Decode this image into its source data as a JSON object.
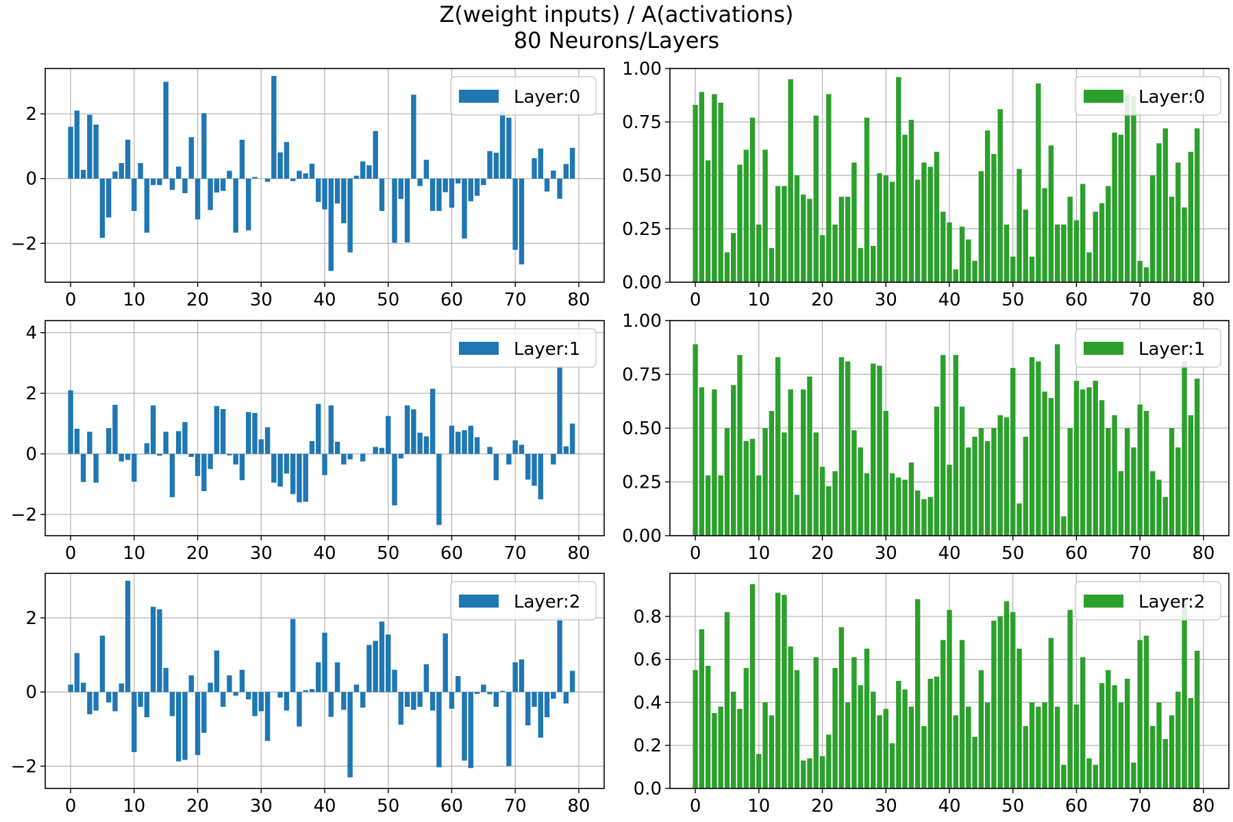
{
  "title": "Z(weight inputs) / A(activations)",
  "subtitle": "80 Neurons/Layers",
  "colors": {
    "z": "#1f77b4",
    "a": "#2ca02c",
    "grid": "#b0b0b0",
    "axis": "#000000"
  },
  "chart_data": [
    {
      "type": "bar",
      "legend": "Layer:0",
      "legend_position": "top-right",
      "xlim": [
        -4,
        84
      ],
      "ylim": [
        -3.2,
        3.4
      ],
      "xticks": [
        0,
        10,
        20,
        30,
        40,
        50,
        60,
        70,
        80
      ],
      "yticks": [
        -2,
        0,
        2
      ],
      "x": [
        0,
        1,
        2,
        3,
        4,
        5,
        6,
        7,
        8,
        9,
        10,
        11,
        12,
        13,
        14,
        15,
        16,
        17,
        18,
        19,
        20,
        21,
        22,
        23,
        24,
        25,
        26,
        27,
        28,
        29,
        30,
        31,
        32,
        33,
        34,
        35,
        36,
        37,
        38,
        39,
        40,
        41,
        42,
        43,
        44,
        45,
        46,
        47,
        48,
        49,
        50,
        51,
        52,
        53,
        54,
        55,
        56,
        57,
        58,
        59,
        60,
        61,
        62,
        63,
        64,
        65,
        66,
        67,
        68,
        69,
        70,
        71,
        72,
        73,
        74,
        75,
        76,
        77,
        78,
        79
      ],
      "values": [
        1.6,
        2.1,
        0.27,
        1.97,
        1.67,
        -1.83,
        -1.2,
        0.22,
        0.48,
        1.2,
        -1.0,
        0.48,
        -1.67,
        -0.2,
        -0.2,
        2.99,
        -0.35,
        0.37,
        -0.45,
        1.28,
        -1.26,
        2.02,
        -0.97,
        -0.43,
        -0.38,
        0.24,
        -1.67,
        1.2,
        -1.6,
        0.05,
        0.0,
        -0.1,
        3.17,
        0.81,
        1.13,
        -0.08,
        0.24,
        0.16,
        0.46,
        -0.72,
        -0.95,
        -2.85,
        -0.77,
        -1.38,
        -2.28,
        0.09,
        0.53,
        0.41,
        1.47,
        -1.0,
        0.0,
        -1.98,
        -0.63,
        -1.97,
        2.59,
        -0.23,
        0.58,
        -1.0,
        -1.0,
        -0.42,
        -0.9,
        -0.15,
        -1.85,
        -0.7,
        -0.53,
        -0.2,
        0.85,
        0.8,
        2.07,
        1.88,
        -2.2,
        -2.65,
        0.0,
        0.63,
        0.93,
        -0.4,
        0.25,
        -0.62,
        0.45,
        0.95
      ]
    },
    {
      "type": "bar",
      "legend": "Layer:0",
      "legend_position": "top-right",
      "xlim": [
        -4,
        84
      ],
      "ylim": [
        0,
        1.0
      ],
      "xticks": [
        0,
        10,
        20,
        30,
        40,
        50,
        60,
        70,
        80
      ],
      "yticks": [
        0.0,
        0.25,
        0.5,
        0.75,
        1.0
      ],
      "x": [
        0,
        1,
        2,
        3,
        4,
        5,
        6,
        7,
        8,
        9,
        10,
        11,
        12,
        13,
        14,
        15,
        16,
        17,
        18,
        19,
        20,
        21,
        22,
        23,
        24,
        25,
        26,
        27,
        28,
        29,
        30,
        31,
        32,
        33,
        34,
        35,
        36,
        37,
        38,
        39,
        40,
        41,
        42,
        43,
        44,
        45,
        46,
        47,
        48,
        49,
        50,
        51,
        52,
        53,
        54,
        55,
        56,
        57,
        58,
        59,
        60,
        61,
        62,
        63,
        64,
        65,
        66,
        67,
        68,
        69,
        70,
        71,
        72,
        73,
        74,
        75,
        76,
        77,
        78,
        79
      ],
      "values": [
        0.83,
        0.89,
        0.57,
        0.88,
        0.84,
        0.14,
        0.23,
        0.55,
        0.62,
        0.77,
        0.27,
        0.62,
        0.16,
        0.45,
        0.45,
        0.95,
        0.5,
        0.41,
        0.39,
        0.78,
        0.22,
        0.88,
        0.27,
        0.4,
        0.4,
        0.56,
        0.16,
        0.77,
        0.17,
        0.51,
        0.5,
        0.47,
        0.96,
        0.69,
        0.76,
        0.48,
        0.56,
        0.54,
        0.61,
        0.33,
        0.28,
        0.06,
        0.26,
        0.2,
        0.1,
        0.52,
        0.71,
        0.6,
        0.81,
        0.27,
        0.12,
        0.53,
        0.34,
        0.12,
        0.93,
        0.44,
        0.64,
        0.27,
        0.27,
        0.4,
        0.29,
        0.46,
        0.14,
        0.33,
        0.37,
        0.45,
        0.7,
        0.69,
        0.88,
        0.87,
        0.1,
        0.07,
        0.5,
        0.65,
        0.72,
        0.4,
        0.56,
        0.35,
        0.61,
        0.72
      ]
    },
    {
      "type": "bar",
      "legend": "Layer:1",
      "legend_position": "top-right",
      "xlim": [
        -4,
        84
      ],
      "ylim": [
        -2.7,
        4.4
      ],
      "xticks": [
        0,
        10,
        20,
        30,
        40,
        50,
        60,
        70,
        80
      ],
      "yticks": [
        -2,
        0,
        2,
        4
      ],
      "x": [
        0,
        1,
        2,
        3,
        4,
        5,
        6,
        7,
        8,
        9,
        10,
        11,
        12,
        13,
        14,
        15,
        16,
        17,
        18,
        19,
        20,
        21,
        22,
        23,
        24,
        25,
        26,
        27,
        28,
        29,
        30,
        31,
        32,
        33,
        34,
        35,
        36,
        37,
        38,
        39,
        40,
        41,
        42,
        43,
        44,
        45,
        46,
        47,
        48,
        49,
        50,
        51,
        52,
        53,
        54,
        55,
        56,
        57,
        58,
        59,
        60,
        61,
        62,
        63,
        64,
        65,
        66,
        67,
        68,
        69,
        70,
        71,
        72,
        73,
        74,
        75,
        76,
        77,
        78,
        79
      ],
      "values": [
        2.1,
        0.83,
        -0.93,
        0.73,
        -0.95,
        0.0,
        0.85,
        1.62,
        -0.25,
        -0.2,
        -0.92,
        0.0,
        0.35,
        1.6,
        -0.06,
        0.73,
        -1.43,
        0.75,
        1.05,
        -0.1,
        -0.73,
        -1.23,
        -0.5,
        1.58,
        1.48,
        -0.05,
        -0.35,
        -0.87,
        1.38,
        1.35,
        0.48,
        0.88,
        -0.95,
        -1.08,
        -0.65,
        -1.33,
        -1.6,
        -1.58,
        0.42,
        1.65,
        -0.7,
        1.6,
        0.4,
        -0.35,
        -0.18,
        0.0,
        -0.25,
        0.0,
        0.23,
        0.2,
        1.25,
        -1.7,
        -0.15,
        1.6,
        1.47,
        0.7,
        0.58,
        2.15,
        -2.35,
        0.0,
        0.93,
        0.73,
        0.78,
        0.93,
        0.55,
        0.0,
        0.23,
        -0.87,
        0.0,
        -0.35,
        0.45,
        0.3,
        -0.85,
        -1.05,
        -1.5,
        0.0,
        -0.35,
        2.85,
        0.25,
        1.0
      ]
    },
    {
      "type": "bar",
      "legend": "Layer:1",
      "legend_position": "top-right",
      "xlim": [
        -4,
        84
      ],
      "ylim": [
        0,
        1.0
      ],
      "xticks": [
        0,
        10,
        20,
        30,
        40,
        50,
        60,
        70,
        80
      ],
      "yticks": [
        0.0,
        0.25,
        0.5,
        0.75,
        1.0
      ],
      "x": [
        0,
        1,
        2,
        3,
        4,
        5,
        6,
        7,
        8,
        9,
        10,
        11,
        12,
        13,
        14,
        15,
        16,
        17,
        18,
        19,
        20,
        21,
        22,
        23,
        24,
        25,
        26,
        27,
        28,
        29,
        30,
        31,
        32,
        33,
        34,
        35,
        36,
        37,
        38,
        39,
        40,
        41,
        42,
        43,
        44,
        45,
        46,
        47,
        48,
        49,
        50,
        51,
        52,
        53,
        54,
        55,
        56,
        57,
        58,
        59,
        60,
        61,
        62,
        63,
        64,
        65,
        66,
        67,
        68,
        69,
        70,
        71,
        72,
        73,
        74,
        75,
        76,
        77,
        78,
        79
      ],
      "values": [
        0.89,
        0.69,
        0.28,
        0.68,
        0.28,
        0.5,
        0.7,
        0.84,
        0.44,
        0.45,
        0.28,
        0.5,
        0.58,
        0.83,
        0.48,
        0.68,
        0.19,
        0.68,
        0.74,
        0.48,
        0.32,
        0.23,
        0.3,
        0.83,
        0.81,
        0.49,
        0.41,
        0.29,
        0.8,
        0.79,
        0.58,
        0.29,
        0.27,
        0.26,
        0.34,
        0.21,
        0.17,
        0.18,
        0.6,
        0.84,
        0.33,
        0.84,
        0.6,
        0.41,
        0.46,
        0.5,
        0.44,
        0.5,
        0.56,
        0.55,
        0.78,
        0.15,
        0.46,
        0.83,
        0.81,
        0.67,
        0.64,
        0.89,
        0.09,
        0.5,
        0.72,
        0.68,
        0.69,
        0.72,
        0.63,
        0.5,
        0.56,
        0.3,
        0.5,
        0.41,
        0.61,
        0.58,
        0.3,
        0.26,
        0.18,
        0.5,
        0.41,
        0.81,
        0.56,
        0.73
      ]
    },
    {
      "type": "bar",
      "legend": "Layer:2",
      "legend_position": "top-right",
      "xlim": [
        -4,
        84
      ],
      "ylim": [
        -2.6,
        3.2
      ],
      "xticks": [
        0,
        10,
        20,
        30,
        40,
        50,
        60,
        70,
        80
      ],
      "yticks": [
        -2,
        0,
        2
      ],
      "x": [
        0,
        1,
        2,
        3,
        4,
        5,
        6,
        7,
        8,
        9,
        10,
        11,
        12,
        13,
        14,
        15,
        16,
        17,
        18,
        19,
        20,
        21,
        22,
        23,
        24,
        25,
        26,
        27,
        28,
        29,
        30,
        31,
        32,
        33,
        34,
        35,
        36,
        37,
        38,
        39,
        40,
        41,
        42,
        43,
        44,
        45,
        46,
        47,
        48,
        49,
        50,
        51,
        52,
        53,
        54,
        55,
        56,
        57,
        58,
        59,
        60,
        61,
        62,
        63,
        64,
        65,
        66,
        67,
        68,
        69,
        70,
        71,
        72,
        73,
        74,
        75,
        76,
        77,
        78,
        79
      ],
      "values": [
        0.2,
        1.05,
        0.25,
        -0.6,
        -0.5,
        1.52,
        -0.28,
        -0.52,
        0.23,
        3.0,
        -1.62,
        -0.4,
        -0.68,
        2.3,
        2.23,
        0.65,
        -0.65,
        -1.87,
        -1.83,
        0.45,
        -1.7,
        -1.1,
        0.25,
        1.12,
        -0.4,
        0.45,
        -0.1,
        0.6,
        -0.2,
        -0.65,
        -0.52,
        -1.32,
        0.0,
        -0.15,
        -0.5,
        1.97,
        -0.93,
        0.05,
        0.08,
        0.8,
        1.6,
        -0.67,
        0.8,
        -0.48,
        -2.3,
        0.2,
        -0.42,
        1.27,
        1.38,
        1.9,
        1.55,
        0.6,
        -0.88,
        -0.4,
        -0.48,
        -0.4,
        0.75,
        -0.5,
        -2.03,
        1.58,
        -0.45,
        0.43,
        -1.85,
        -2.05,
        -0.05,
        0.2,
        -0.06,
        -0.4,
        0.03,
        -2.0,
        0.8,
        0.88,
        -0.9,
        -0.4,
        -1.23,
        -0.68,
        -0.18,
        2.0,
        -0.31,
        0.57
      ]
    },
    {
      "type": "bar",
      "legend": "Layer:2",
      "legend_position": "top-right",
      "xlim": [
        -4,
        84
      ],
      "ylim": [
        0,
        1.0
      ],
      "xticks": [
        0,
        10,
        20,
        30,
        40,
        50,
        60,
        70,
        80
      ],
      "yticks": [
        0.0,
        0.2,
        0.4,
        0.6,
        0.8
      ],
      "x": [
        0,
        1,
        2,
        3,
        4,
        5,
        6,
        7,
        8,
        9,
        10,
        11,
        12,
        13,
        14,
        15,
        16,
        17,
        18,
        19,
        20,
        21,
        22,
        23,
        24,
        25,
        26,
        27,
        28,
        29,
        30,
        31,
        32,
        33,
        34,
        35,
        36,
        37,
        38,
        39,
        40,
        41,
        42,
        43,
        44,
        45,
        46,
        47,
        48,
        49,
        50,
        51,
        52,
        53,
        54,
        55,
        56,
        57,
        58,
        59,
        60,
        61,
        62,
        63,
        64,
        65,
        66,
        67,
        68,
        69,
        70,
        71,
        72,
        73,
        74,
        75,
        76,
        77,
        78,
        79
      ],
      "values": [
        0.55,
        0.74,
        0.57,
        0.35,
        0.38,
        0.82,
        0.45,
        0.37,
        0.56,
        0.95,
        0.16,
        0.4,
        0.34,
        0.91,
        0.9,
        0.66,
        0.55,
        0.13,
        0.14,
        0.61,
        0.15,
        0.25,
        0.56,
        0.75,
        0.4,
        0.61,
        0.48,
        0.65,
        0.45,
        0.34,
        0.37,
        0.21,
        0.5,
        0.46,
        0.38,
        0.88,
        0.29,
        0.51,
        0.52,
        0.69,
        0.83,
        0.34,
        0.69,
        0.38,
        0.24,
        0.55,
        0.4,
        0.78,
        0.8,
        0.87,
        0.82,
        0.65,
        0.29,
        0.4,
        0.38,
        0.4,
        0.7,
        0.38,
        0.11,
        0.83,
        0.39,
        0.61,
        0.14,
        0.11,
        0.49,
        0.55,
        0.48,
        0.4,
        0.51,
        0.12,
        0.69,
        0.71,
        0.29,
        0.4,
        0.23,
        0.34,
        0.45,
        0.88,
        0.42,
        0.64
      ]
    }
  ]
}
